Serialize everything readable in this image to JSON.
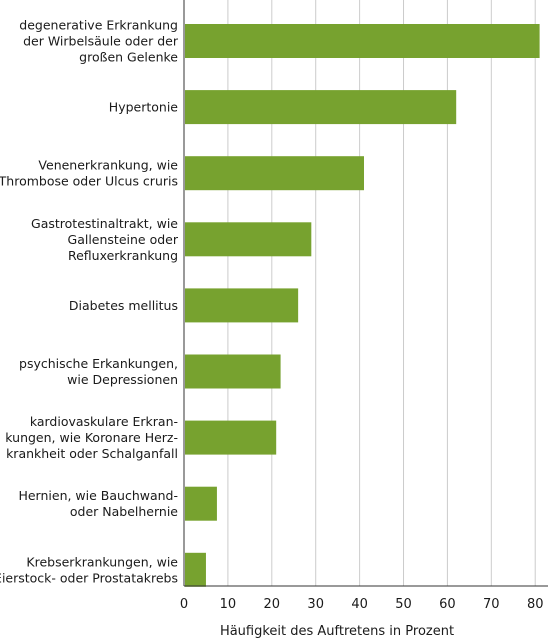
{
  "chart_data": {
    "type": "bar",
    "orientation": "horizontal",
    "categories": [
      [
        "degenerative Erkrankung",
        "der Wirbelsäule oder der",
        "großen Gelenke"
      ],
      [
        "Hypertonie"
      ],
      [
        "Venenerkrankung, wie",
        "Thrombose oder Ulcus cruris"
      ],
      [
        "Gastrotestinaltrakt, wie",
        "Gallensteine oder",
        "Refluxerkrankung"
      ],
      [
        "Diabetes mellitus"
      ],
      [
        "psychische Erkankungen,",
        "wie Depressionen"
      ],
      [
        "kardiovaskulare Erkran-",
        "kungen, wie Koronare Herz-",
        "krankheit oder Schalganfall"
      ],
      [
        "Hernien, wie Bauchwand-",
        "oder Nabelhernie"
      ],
      [
        "Krebserkrankungen, wie",
        "Eierstock- oder Prostatakrebs"
      ]
    ],
    "values": [
      81,
      62,
      41,
      29,
      26,
      22,
      21,
      7.5,
      5
    ],
    "xlabel": "Häufigkeit des Auftretens in Prozent",
    "xlim": [
      0,
      82
    ],
    "xticks": [
      0,
      10,
      20,
      30,
      40,
      50,
      60,
      70,
      80
    ],
    "grid": "vertical",
    "bar_color": "#77a22f",
    "grid_color": "#cccccc"
  }
}
